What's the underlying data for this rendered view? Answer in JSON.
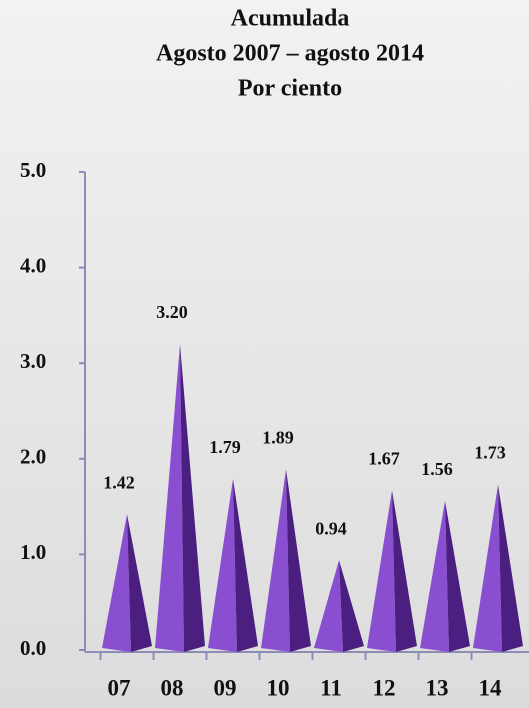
{
  "chart_data": {
    "type": "pyramid",
    "title": [
      "Acumulada",
      "Agosto 2007 – agosto 2014",
      "Por ciento"
    ],
    "categories": [
      "07",
      "08",
      "09",
      "10",
      "11",
      "12",
      "13",
      "14"
    ],
    "values": [
      1.42,
      3.2,
      1.79,
      1.89,
      0.94,
      1.67,
      1.56,
      1.73
    ],
    "value_labels": [
      "1.42",
      "3.20",
      "1.79",
      "1.89",
      "0.94",
      "1.67",
      "1.56",
      "1.73"
    ],
    "color": "#8a4fd0",
    "ylim": [
      0,
      5
    ],
    "yticks": [
      {
        "value": 0,
        "label": "0.0"
      },
      {
        "value": 1,
        "label": "1.0"
      },
      {
        "value": 2,
        "label": "2.0"
      },
      {
        "value": 3,
        "label": "3.0"
      },
      {
        "value": 4,
        "label": "4.0"
      },
      {
        "value": 5,
        "label": "5.0"
      }
    ]
  }
}
